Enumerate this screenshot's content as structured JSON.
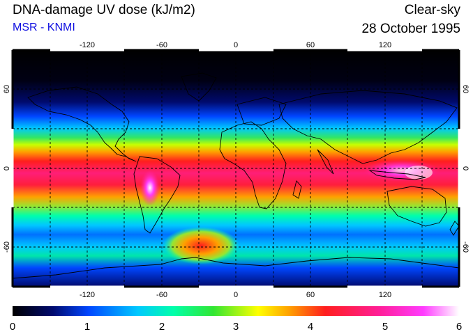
{
  "header": {
    "title": "DNA-damage UV dose (kJ/m2)",
    "source": "MSR - KNMI",
    "condition": "Clear-sky",
    "date": "28 October 1995"
  },
  "map": {
    "lon_ticks": [
      "-120",
      "-60",
      "0",
      "60",
      "120"
    ],
    "lat_ticks": [
      "60",
      "0",
      "-60"
    ],
    "graticule_lon_step_deg": 30,
    "graticule_lat_step_deg": 30,
    "projection": "equirectangular",
    "lat_range": [
      -90,
      90
    ],
    "lon_range": [
      -180,
      180
    ]
  },
  "colorbar": {
    "ticks": [
      "0",
      "1",
      "2",
      "3",
      "4",
      "5",
      "6"
    ],
    "range": [
      0,
      6
    ],
    "colors": [
      "#000000",
      "#000a6e",
      "#0046ff",
      "#00c8ff",
      "#00ffaa",
      "#32e632",
      "#ffff00",
      "#ffa000",
      "#ff1e1e",
      "#ff1e96",
      "#ff3cff",
      "#ffffff"
    ]
  }
}
